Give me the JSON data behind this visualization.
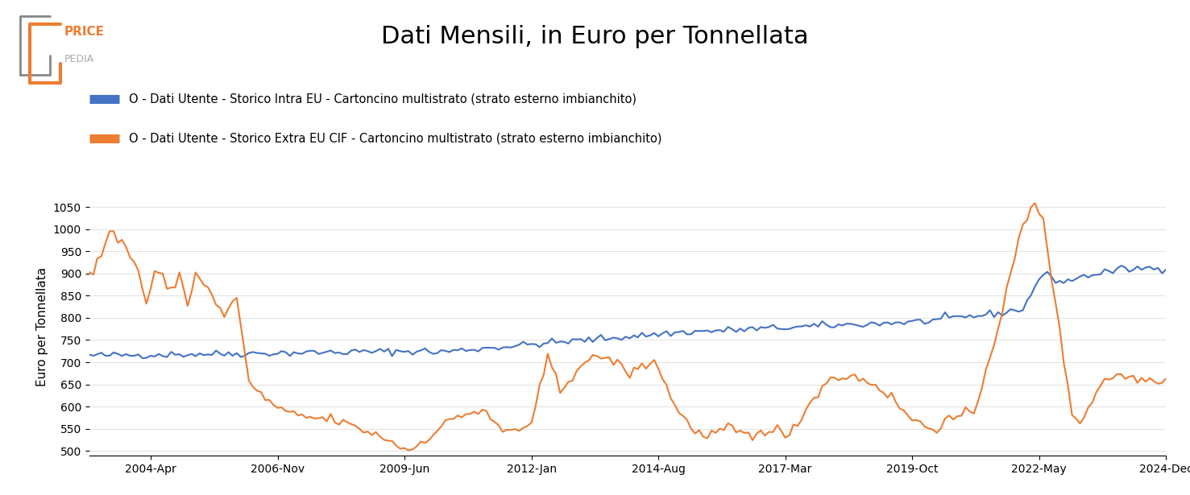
{
  "title": "Dati Mensili, in Euro per Tonnellata",
  "ylabel": "Euro per Tonnellata",
  "legend_intra": "O - Dati Utente - Storico Intra EU - Cartoncino multistrato (strato esterno imbianchito)",
  "legend_extra": "O - Dati Utente - Storico Extra EU CIF - Cartoncino multistrato (strato esterno imbianchito)",
  "color_intra": "#4472C4",
  "color_extra": "#ED7D31",
  "ylim": [
    490,
    1070
  ],
  "yticks": [
    500,
    550,
    600,
    650,
    700,
    750,
    800,
    850,
    900,
    950,
    1000,
    1050
  ],
  "background_color": "#ffffff",
  "title_fontsize": 22,
  "legend_fontsize": 10.5,
  "axis_fontsize": 11,
  "tick_fontsize": 10,
  "xtick_labels": [
    "2004-Apr",
    "2006-Nov",
    "2009-Jun",
    "2012-Jan",
    "2014-Aug",
    "2017-Mar",
    "2019-Oct",
    "2022-May",
    "2024-Dec"
  ],
  "line_width": 1.5
}
